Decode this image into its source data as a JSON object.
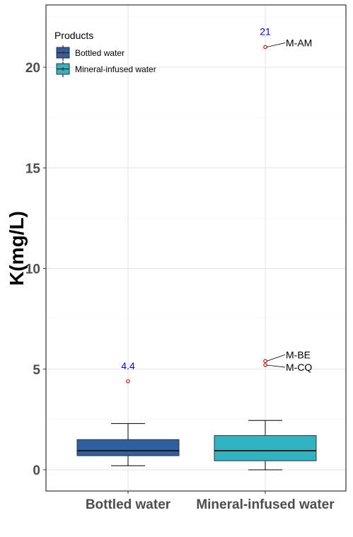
{
  "chart_data": {
    "type": "box",
    "ylabel": "K(mg/L)",
    "xlabel": "",
    "ylim": [
      -1.1,
      23.0
    ],
    "yticks": [
      0,
      5,
      10,
      15,
      20
    ],
    "grid": true,
    "legend": {
      "title": "Products",
      "placement": "top-left",
      "entries": [
        {
          "label": "Bottled water",
          "color": "#2E5FA1"
        },
        {
          "label": "Mineral-infused water",
          "color": "#31B4C2"
        }
      ]
    },
    "categories": [
      "Bottled water",
      "Mineral-infused water"
    ],
    "boxes": [
      {
        "name": "Bottled water",
        "color": "#2E5FA1",
        "whisker_low": 0.2,
        "q1": 0.7,
        "median": 0.95,
        "q3": 1.5,
        "whisker_high": 2.3,
        "outliers": [
          {
            "value": 4.4,
            "label": ""
          }
        ],
        "max_label": "4.4"
      },
      {
        "name": "Mineral-infused water",
        "color": "#31B4C2",
        "whisker_low": 0.0,
        "q1": 0.45,
        "median": 0.95,
        "q3": 1.7,
        "whisker_high": 2.45,
        "outliers": [
          {
            "value": 5.2,
            "label": "M-CQ"
          },
          {
            "value": 5.4,
            "label": "M-BE"
          },
          {
            "value": 21.0,
            "label": "M-AM"
          }
        ],
        "max_label": "21"
      }
    ],
    "outlier_color": "#cc0000",
    "max_label_color": "#0000ff"
  }
}
